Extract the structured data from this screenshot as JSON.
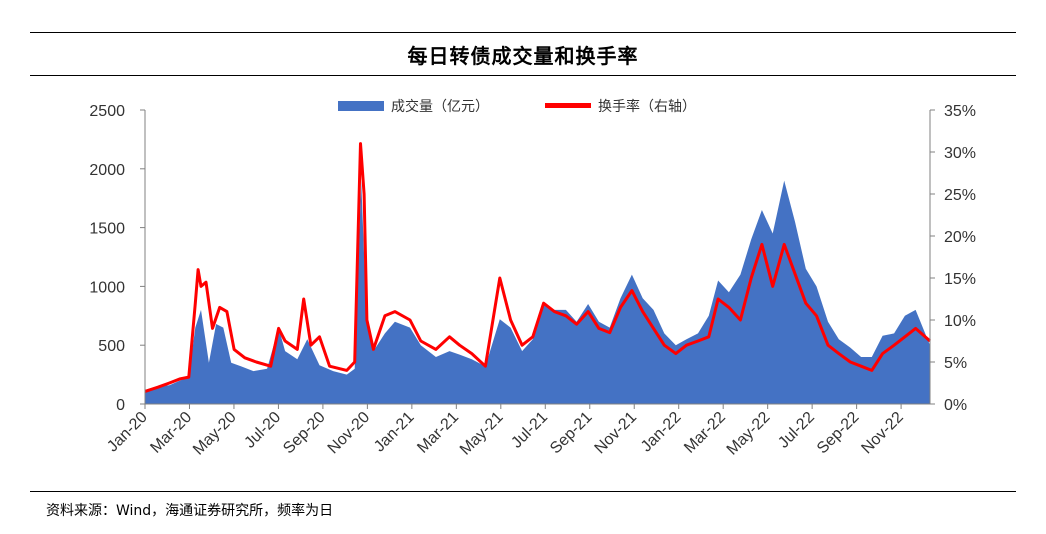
{
  "title": "每日转债成交量和换手率",
  "source": "资料来源：Wind，海通证券研究所，频率为日",
  "colors": {
    "volume": "#4472c4",
    "turnover": "#ff0000",
    "axis": "#808080",
    "text": "#333333"
  },
  "chart_data": {
    "type": "area+line",
    "title": "每日转债成交量和换手率",
    "x_labels": [
      "Jan-20",
      "Mar-20",
      "May-20",
      "Jul-20",
      "Sep-20",
      "Nov-20",
      "Jan-21",
      "Mar-21",
      "May-21",
      "Jul-21",
      "Sep-21",
      "Nov-21",
      "Jan-22",
      "Mar-22",
      "May-22",
      "Jul-22",
      "Sep-22",
      "Nov-22"
    ],
    "x_range": [
      "2020-01-02",
      "2022-12-30"
    ],
    "y_left": {
      "ticks": [
        "0",
        "500",
        "1000",
        "1500",
        "2000",
        "2500"
      ],
      "range": [
        0,
        2500
      ]
    },
    "y_right": {
      "ticks": [
        "0%",
        "5%",
        "10%",
        "15%",
        "20%",
        "25%",
        "30%",
        "35%"
      ],
      "range": [
        0,
        35
      ]
    },
    "legend": {
      "position": "top-center"
    },
    "series": [
      {
        "name": "成交量（亿元）",
        "type": "area",
        "axis": "left",
        "points": [
          [
            "2020-01-02",
            120
          ],
          [
            "2020-01-20",
            150
          ],
          [
            "2020-02-05",
            160
          ],
          [
            "2020-02-20",
            200
          ],
          [
            "2020-03-03",
            230
          ],
          [
            "2020-03-12",
            650
          ],
          [
            "2020-03-20",
            800
          ],
          [
            "2020-03-31",
            350
          ],
          [
            "2020-04-10",
            680
          ],
          [
            "2020-04-20",
            650
          ],
          [
            "2020-05-01",
            350
          ],
          [
            "2020-05-15",
            320
          ],
          [
            "2020-06-01",
            280
          ],
          [
            "2020-06-20",
            300
          ],
          [
            "2020-07-06",
            650
          ],
          [
            "2020-07-15",
            450
          ],
          [
            "2020-08-01",
            380
          ],
          [
            "2020-08-15",
            550
          ],
          [
            "2020-09-01",
            330
          ],
          [
            "2020-09-20",
            280
          ],
          [
            "2020-10-09",
            250
          ],
          [
            "2020-10-20",
            300
          ],
          [
            "2020-10-29",
            1900
          ],
          [
            "2020-11-05",
            800
          ],
          [
            "2020-11-15",
            450
          ],
          [
            "2020-12-01",
            600
          ],
          [
            "2020-12-15",
            700
          ],
          [
            "2021-01-05",
            650
          ],
          [
            "2021-01-20",
            500
          ],
          [
            "2021-02-10",
            400
          ],
          [
            "2021-03-01",
            450
          ],
          [
            "2021-03-15",
            420
          ],
          [
            "2021-04-01",
            380
          ],
          [
            "2021-04-20",
            320
          ],
          [
            "2021-05-10",
            720
          ],
          [
            "2021-05-25",
            650
          ],
          [
            "2021-06-10",
            450
          ],
          [
            "2021-06-25",
            550
          ],
          [
            "2021-07-10",
            850
          ],
          [
            "2021-07-25",
            800
          ],
          [
            "2021-08-10",
            800
          ],
          [
            "2021-08-25",
            700
          ],
          [
            "2021-09-10",
            850
          ],
          [
            "2021-09-25",
            700
          ],
          [
            "2021-10-10",
            650
          ],
          [
            "2021-10-25",
            900
          ],
          [
            "2021-11-10",
            1100
          ],
          [
            "2021-11-25",
            900
          ],
          [
            "2021-12-10",
            800
          ],
          [
            "2021-12-25",
            600
          ],
          [
            "2022-01-10",
            500
          ],
          [
            "2022-01-25",
            550
          ],
          [
            "2022-02-10",
            600
          ],
          [
            "2022-02-25",
            750
          ],
          [
            "2022-03-10",
            1050
          ],
          [
            "2022-03-25",
            950
          ],
          [
            "2022-04-10",
            1100
          ],
          [
            "2022-04-25",
            1400
          ],
          [
            "2022-05-10",
            1650
          ],
          [
            "2022-05-25",
            1450
          ],
          [
            "2022-06-10",
            1900
          ],
          [
            "2022-06-25",
            1550
          ],
          [
            "2022-07-10",
            1150
          ],
          [
            "2022-07-25",
            1000
          ],
          [
            "2022-08-10",
            700
          ],
          [
            "2022-08-25",
            550
          ],
          [
            "2022-09-10",
            480
          ],
          [
            "2022-09-25",
            400
          ],
          [
            "2022-10-10",
            400
          ],
          [
            "2022-10-25",
            580
          ],
          [
            "2022-11-10",
            600
          ],
          [
            "2022-11-25",
            750
          ],
          [
            "2022-12-10",
            800
          ],
          [
            "2022-12-30",
            500
          ]
        ]
      },
      {
        "name": "换手率（右轴）",
        "type": "line",
        "axis": "right",
        "unit": "%",
        "points": [
          [
            "2020-01-02",
            1.5
          ],
          [
            "2020-01-20",
            2.0
          ],
          [
            "2020-02-05",
            2.5
          ],
          [
            "2020-02-20",
            3.0
          ],
          [
            "2020-03-03",
            3.2
          ],
          [
            "2020-03-12",
            12.0
          ],
          [
            "2020-03-16",
            16.0
          ],
          [
            "2020-03-20",
            14.0
          ],
          [
            "2020-03-27",
            14.5
          ],
          [
            "2020-04-05",
            9.0
          ],
          [
            "2020-04-15",
            11.5
          ],
          [
            "2020-04-25",
            11.0
          ],
          [
            "2020-05-05",
            6.5
          ],
          [
            "2020-05-20",
            5.5
          ],
          [
            "2020-06-05",
            5.0
          ],
          [
            "2020-06-25",
            4.5
          ],
          [
            "2020-07-06",
            9.0
          ],
          [
            "2020-07-15",
            7.5
          ],
          [
            "2020-08-01",
            6.5
          ],
          [
            "2020-08-10",
            12.5
          ],
          [
            "2020-08-20",
            7.0
          ],
          [
            "2020-09-01",
            8.0
          ],
          [
            "2020-09-15",
            4.5
          ],
          [
            "2020-10-09",
            4.0
          ],
          [
            "2020-10-20",
            5.0
          ],
          [
            "2020-10-28",
            31.0
          ],
          [
            "2020-11-02",
            25.0
          ],
          [
            "2020-11-06",
            10.0
          ],
          [
            "2020-11-15",
            6.5
          ],
          [
            "2020-12-01",
            10.5
          ],
          [
            "2020-12-15",
            11.0
          ],
          [
            "2021-01-05",
            10.0
          ],
          [
            "2021-01-20",
            7.5
          ],
          [
            "2021-02-10",
            6.5
          ],
          [
            "2021-03-01",
            8.0
          ],
          [
            "2021-03-15",
            7.0
          ],
          [
            "2021-04-01",
            6.0
          ],
          [
            "2021-04-20",
            4.5
          ],
          [
            "2021-05-10",
            15.0
          ],
          [
            "2021-05-25",
            10.0
          ],
          [
            "2021-06-10",
            7.0
          ],
          [
            "2021-06-25",
            8.0
          ],
          [
            "2021-07-10",
            12.0
          ],
          [
            "2021-07-25",
            11.0
          ],
          [
            "2021-08-10",
            10.5
          ],
          [
            "2021-08-25",
            9.5
          ],
          [
            "2021-09-10",
            11.0
          ],
          [
            "2021-09-25",
            9.0
          ],
          [
            "2021-10-10",
            8.5
          ],
          [
            "2021-10-25",
            11.5
          ],
          [
            "2021-11-10",
            13.5
          ],
          [
            "2021-11-25",
            11.0
          ],
          [
            "2021-12-10",
            9.0
          ],
          [
            "2021-12-25",
            7.0
          ],
          [
            "2022-01-10",
            6.0
          ],
          [
            "2022-01-25",
            7.0
          ],
          [
            "2022-02-10",
            7.5
          ],
          [
            "2022-02-25",
            8.0
          ],
          [
            "2022-03-10",
            12.5
          ],
          [
            "2022-03-25",
            11.5
          ],
          [
            "2022-04-10",
            10.0
          ],
          [
            "2022-04-25",
            15.0
          ],
          [
            "2022-05-10",
            19.0
          ],
          [
            "2022-05-25",
            14.0
          ],
          [
            "2022-06-10",
            19.0
          ],
          [
            "2022-06-25",
            15.5
          ],
          [
            "2022-07-10",
            12.0
          ],
          [
            "2022-07-25",
            10.5
          ],
          [
            "2022-08-10",
            7.0
          ],
          [
            "2022-08-25",
            6.0
          ],
          [
            "2022-09-10",
            5.0
          ],
          [
            "2022-09-25",
            4.5
          ],
          [
            "2022-10-10",
            4.0
          ],
          [
            "2022-10-25",
            6.0
          ],
          [
            "2022-11-10",
            7.0
          ],
          [
            "2022-11-25",
            8.0
          ],
          [
            "2022-12-10",
            9.0
          ],
          [
            "2022-12-30",
            7.5
          ]
        ]
      }
    ]
  }
}
